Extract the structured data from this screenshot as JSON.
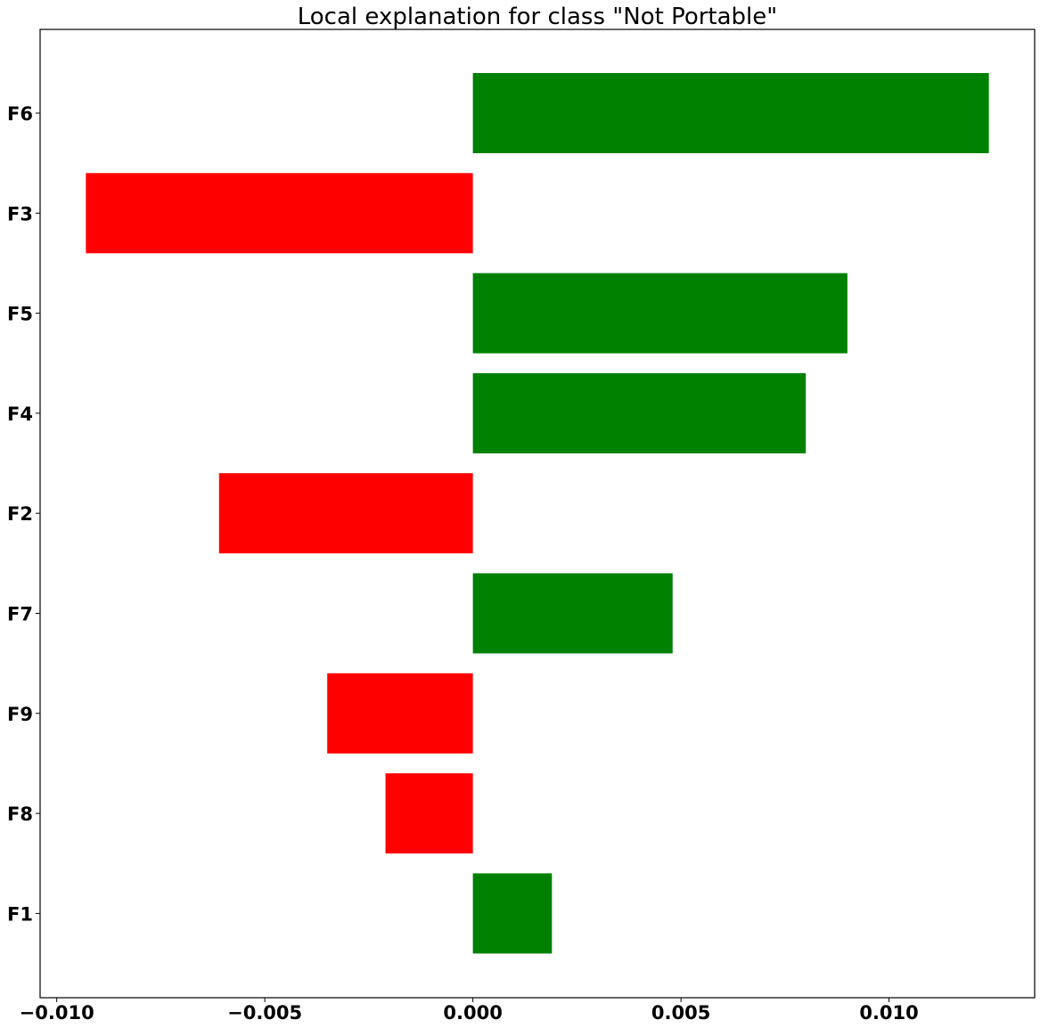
{
  "chart_data": {
    "type": "bar",
    "orientation": "horizontal",
    "title": "Local explanation for class \"Not Portable\"",
    "xlabel": "",
    "ylabel": "",
    "categories": [
      "F6",
      "F3",
      "F5",
      "F4",
      "F2",
      "F7",
      "F9",
      "F8",
      "F1"
    ],
    "values": [
      0.0124,
      -0.0093,
      0.009,
      0.008,
      -0.0061,
      0.0048,
      -0.0035,
      -0.0021,
      0.0019
    ],
    "xlim": [
      -0.0104,
      0.0135
    ],
    "xticks": [
      -0.01,
      -0.005,
      0.0,
      0.005,
      0.01
    ],
    "xtick_labels": [
      "−0.010",
      "−0.005",
      "0.000",
      "0.005",
      "0.010"
    ],
    "colors": {
      "positive": "#008000",
      "negative": "#ff0000"
    },
    "grid": false,
    "legend": "none"
  }
}
